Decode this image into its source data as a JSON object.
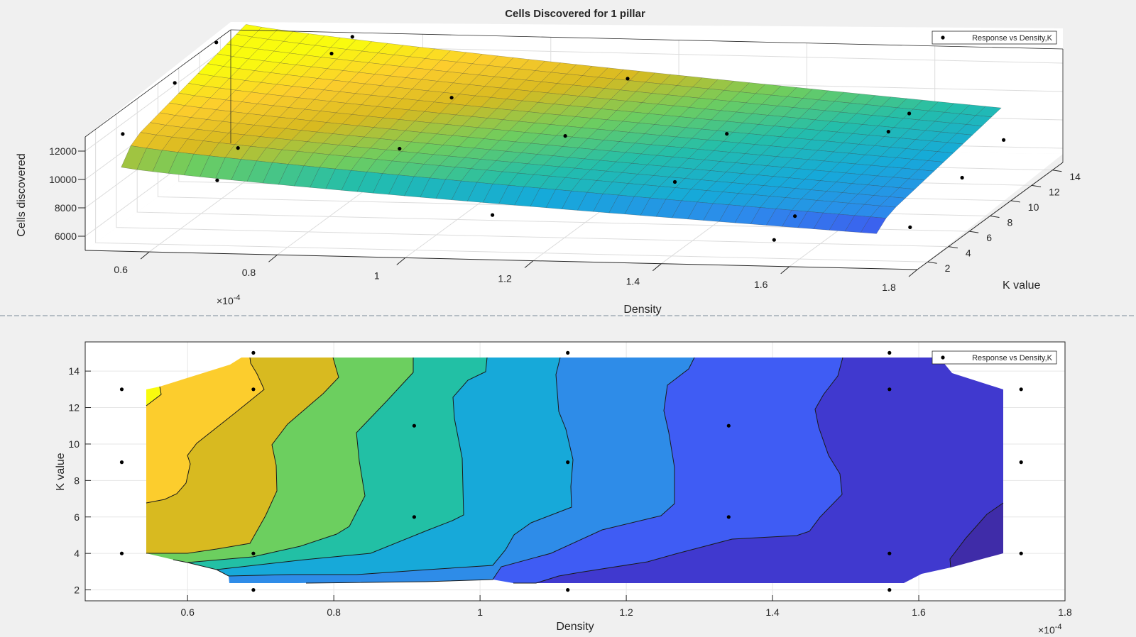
{
  "chart_data": [
    {
      "type": "surface",
      "title": "Cells Discovered for 1 pillar",
      "xlabel": "Density",
      "ylabel": "K value",
      "zlabel": "Cells discovered",
      "x_exponent_label": "×10",
      "x_exponent_power": "-4",
      "x_ticks": [
        "0.6",
        "0.8",
        "1",
        "1.2",
        "1.4",
        "1.6",
        "1.8"
      ],
      "y_ticks": [
        "2",
        "4",
        "6",
        "8",
        "10",
        "12",
        "14"
      ],
      "z_ticks": [
        "6000",
        "8000",
        "10000",
        "12000"
      ],
      "xlim": [
        0.5,
        1.8
      ],
      "ylim": [
        1,
        15
      ],
      "zlim": [
        5000,
        13000
      ],
      "grid": true,
      "colormap": "parula",
      "legend": {
        "position": "top-right",
        "entries": [
          "Response vs Density,K"
        ]
      },
      "points": [
        {
          "x": 0.51,
          "y": 13,
          "z": 13200
        },
        {
          "x": 0.51,
          "y": 9,
          "z": 12500
        },
        {
          "x": 0.51,
          "y": 4,
          "z": 11600
        },
        {
          "x": 0.69,
          "y": 15,
          "z": 12700
        },
        {
          "x": 0.69,
          "y": 13,
          "z": 12600
        },
        {
          "x": 0.69,
          "y": 4,
          "z": 10800
        },
        {
          "x": 0.69,
          "y": 2,
          "z": 9600
        },
        {
          "x": 0.91,
          "y": 11,
          "z": 10800
        },
        {
          "x": 0.91,
          "y": 6,
          "z": 9900
        },
        {
          "x": 1.12,
          "y": 15,
          "z": 10200
        },
        {
          "x": 1.12,
          "y": 9,
          "z": 9400
        },
        {
          "x": 1.12,
          "y": 2,
          "z": 7600
        },
        {
          "x": 1.34,
          "y": 11,
          "z": 8700
        },
        {
          "x": 1.34,
          "y": 6,
          "z": 8000
        },
        {
          "x": 1.56,
          "y": 15,
          "z": 8200
        },
        {
          "x": 1.56,
          "y": 13,
          "z": 8000
        },
        {
          "x": 1.56,
          "y": 4,
          "z": 6900
        },
        {
          "x": 1.56,
          "y": 2,
          "z": 6300
        },
        {
          "x": 1.74,
          "y": 13,
          "z": 7600
        },
        {
          "x": 1.74,
          "y": 9,
          "z": 7100
        },
        {
          "x": 1.74,
          "y": 4,
          "z": 6300
        }
      ]
    },
    {
      "type": "contour",
      "title": "",
      "xlabel": "Density",
      "ylabel": "K value",
      "x_exponent_label": "×10",
      "x_exponent_power": "-4",
      "x_ticks": [
        "0.6",
        "0.8",
        "1",
        "1.2",
        "1.4",
        "1.6",
        "1.8"
      ],
      "y_ticks": [
        "2",
        "4",
        "6",
        "8",
        "10",
        "12",
        "14"
      ],
      "xlim": [
        0.46,
        1.8
      ],
      "ylim": [
        1.4,
        15.6
      ],
      "grid": true,
      "colormap": "parula",
      "legend": {
        "position": "top-right",
        "entries": [
          "Response vs Density,K"
        ]
      },
      "points": [
        {
          "x": 0.51,
          "y": 13
        },
        {
          "x": 0.51,
          "y": 9
        },
        {
          "x": 0.51,
          "y": 4
        },
        {
          "x": 0.69,
          "y": 15
        },
        {
          "x": 0.69,
          "y": 13
        },
        {
          "x": 0.69,
          "y": 4
        },
        {
          "x": 0.69,
          "y": 2
        },
        {
          "x": 0.91,
          "y": 11
        },
        {
          "x": 0.91,
          "y": 6
        },
        {
          "x": 1.12,
          "y": 15
        },
        {
          "x": 1.12,
          "y": 9
        },
        {
          "x": 1.12,
          "y": 2
        },
        {
          "x": 1.34,
          "y": 11
        },
        {
          "x": 1.34,
          "y": 6
        },
        {
          "x": 1.56,
          "y": 15
        },
        {
          "x": 1.56,
          "y": 13
        },
        {
          "x": 1.56,
          "y": 4
        },
        {
          "x": 1.56,
          "y": 2
        },
        {
          "x": 1.74,
          "y": 13
        },
        {
          "x": 1.74,
          "y": 9
        },
        {
          "x": 1.74,
          "y": 4
        }
      ]
    }
  ],
  "colors": {
    "figure_bg": "#f0f0f0",
    "axes_bg": "#ffffff",
    "axis_line": "#262626",
    "grid": "#dcdcdc",
    "marker": "#000000",
    "divider": "#7a8a99",
    "bands": [
      "#f9fb0e",
      "#fccd2d",
      "#d8ba20",
      "#6ccf5f",
      "#22c0a5",
      "#17a9d9",
      "#2e8ce8",
      "#3f5cf4",
      "#4039cf",
      "#3f2ca8"
    ]
  }
}
